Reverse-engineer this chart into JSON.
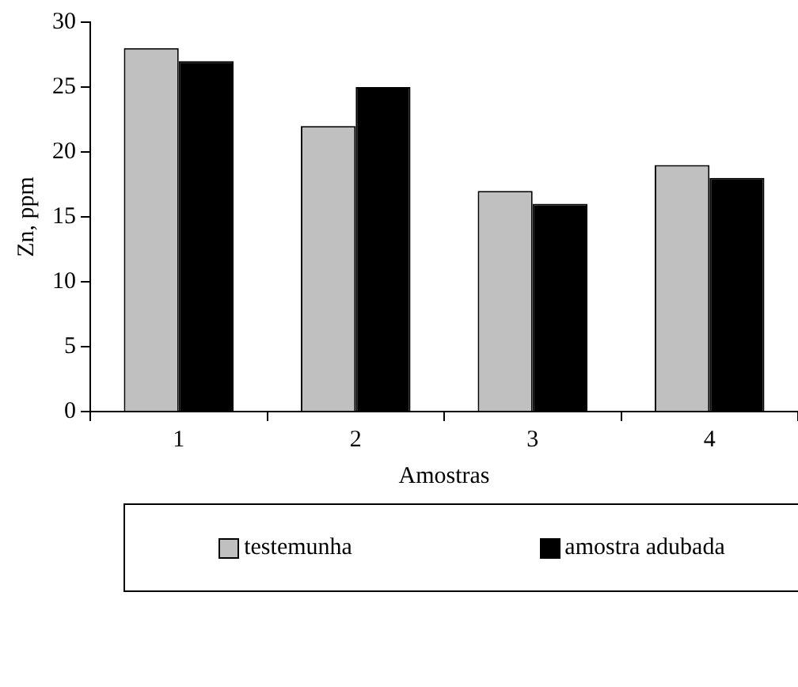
{
  "chart_data": {
    "type": "bar",
    "xlabel": "Amostras",
    "ylabel": "Zn, ppm",
    "categories": [
      "1",
      "2",
      "3",
      "4"
    ],
    "series": [
      {
        "name": "testemunha",
        "color": "#c0c0c0",
        "values": [
          28,
          22,
          17,
          19
        ]
      },
      {
        "name": "amostra adubada",
        "color": "#000000",
        "values": [
          27,
          25,
          16,
          18
        ]
      }
    ],
    "ylim": [
      0,
      30
    ],
    "yticks": [
      0,
      5,
      10,
      15,
      20,
      25,
      30
    ],
    "grid": false,
    "legend": "bottom"
  }
}
